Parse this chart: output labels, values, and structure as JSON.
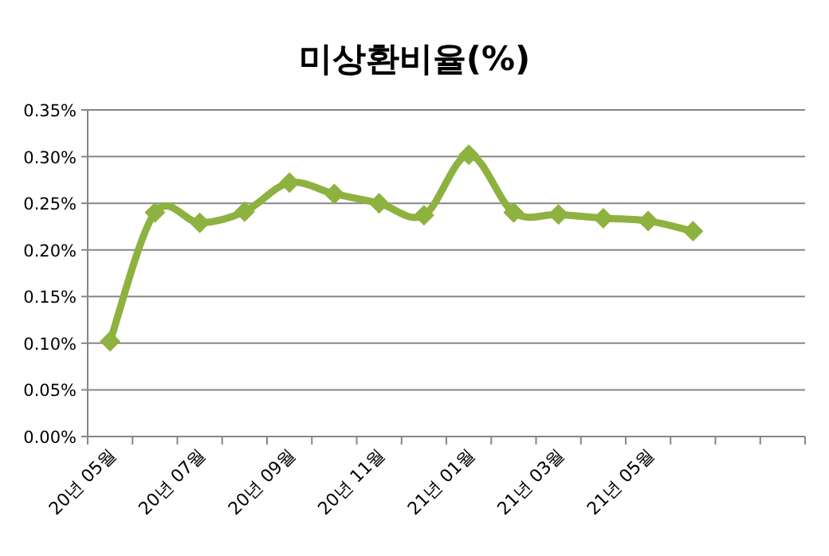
{
  "chart_data": {
    "type": "line",
    "title": "미상환비율(%)",
    "categories": [
      "20년 05월",
      null,
      "20년 07월",
      null,
      "20년 09월",
      null,
      "20년 11월",
      null,
      "21년 01월",
      null,
      "21년 03월",
      null,
      "21년 05월",
      null,
      null,
      null
    ],
    "series": [
      {
        "color": "#8db23f",
        "values": [
          0.102,
          0.24,
          0.229,
          0.241,
          0.272,
          0.26,
          0.25,
          0.237,
          0.302,
          0.24,
          0.238,
          0.234,
          0.231,
          0.22,
          null,
          null
        ]
      }
    ],
    "ylim": [
      0,
      0.35
    ],
    "yticks": [
      {
        "value": 0,
        "label": "0.00%"
      },
      {
        "value": 0.05,
        "label": "0.05%"
      },
      {
        "value": 0.1,
        "label": "0.10%"
      },
      {
        "value": 0.15,
        "label": "0.15%"
      },
      {
        "value": 0.2,
        "label": "0.20%"
      },
      {
        "value": 0.25,
        "label": "0.25%"
      },
      {
        "value": 0.3,
        "label": "0.30%"
      },
      {
        "value": 0.35,
        "label": "0.35%"
      }
    ],
    "grid": "y",
    "marker": "diamond",
    "line_style": "solid"
  }
}
